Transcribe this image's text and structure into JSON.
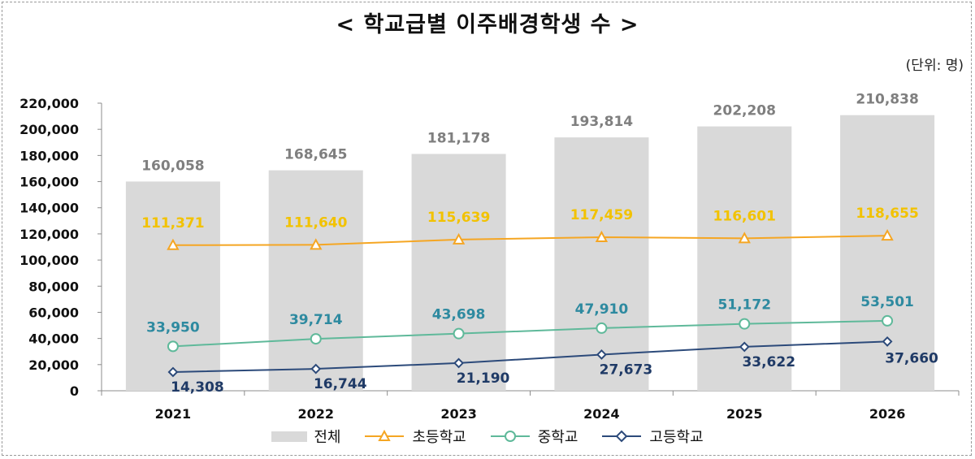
{
  "title": "< 학교급별 이주배경학생 수 >",
  "unit": "(단위: 명)",
  "colors": {
    "total": "#d9d9d9",
    "elementary": "#f5a623",
    "middle": "#5fb99a",
    "high": "#2c4a7a",
    "elementary_label": "#f2c200",
    "middle_label": "#2e8aa0",
    "high_label": "#1f3a66",
    "total_label": "#7f7f7f"
  },
  "chart_data": {
    "type": "bar",
    "categories": [
      "2021",
      "2022",
      "2023",
      "2024",
      "2025",
      "2026"
    ],
    "series": [
      {
        "name": "전체",
        "kind": "bar",
        "values": [
          160058,
          168645,
          181178,
          193814,
          202208,
          210838
        ],
        "labels": [
          "160,058",
          "168,645",
          "181,178",
          "193,814",
          "202,208",
          "210,838"
        ]
      },
      {
        "name": "초등학교",
        "kind": "line",
        "marker": "triangle",
        "values": [
          111371,
          111640,
          115639,
          117459,
          116601,
          118655
        ],
        "labels": [
          "111,371",
          "111,640",
          "115,639",
          "117,459",
          "116,601",
          "118,655"
        ]
      },
      {
        "name": "중학교",
        "kind": "line",
        "marker": "circle",
        "values": [
          33950,
          39714,
          43698,
          47910,
          51172,
          53501
        ],
        "labels": [
          "33,950",
          "39,714",
          "43,698",
          "47,910",
          "51,172",
          "53,501"
        ]
      },
      {
        "name": "고등학교",
        "kind": "line",
        "marker": "diamond",
        "values": [
          14308,
          16744,
          21190,
          27673,
          33622,
          37660
        ],
        "labels": [
          "14,308",
          "16,744",
          "21,190",
          "27,673",
          "33,622",
          "37,660"
        ]
      }
    ],
    "ylim": [
      0,
      220000
    ],
    "yticks": [
      "0",
      "20,000",
      "40,000",
      "60,000",
      "80,000",
      "100,000",
      "120,000",
      "140,000",
      "160,000",
      "180,000",
      "200,000",
      "220,000"
    ],
    "legend_position": "bottom",
    "grid": false
  }
}
